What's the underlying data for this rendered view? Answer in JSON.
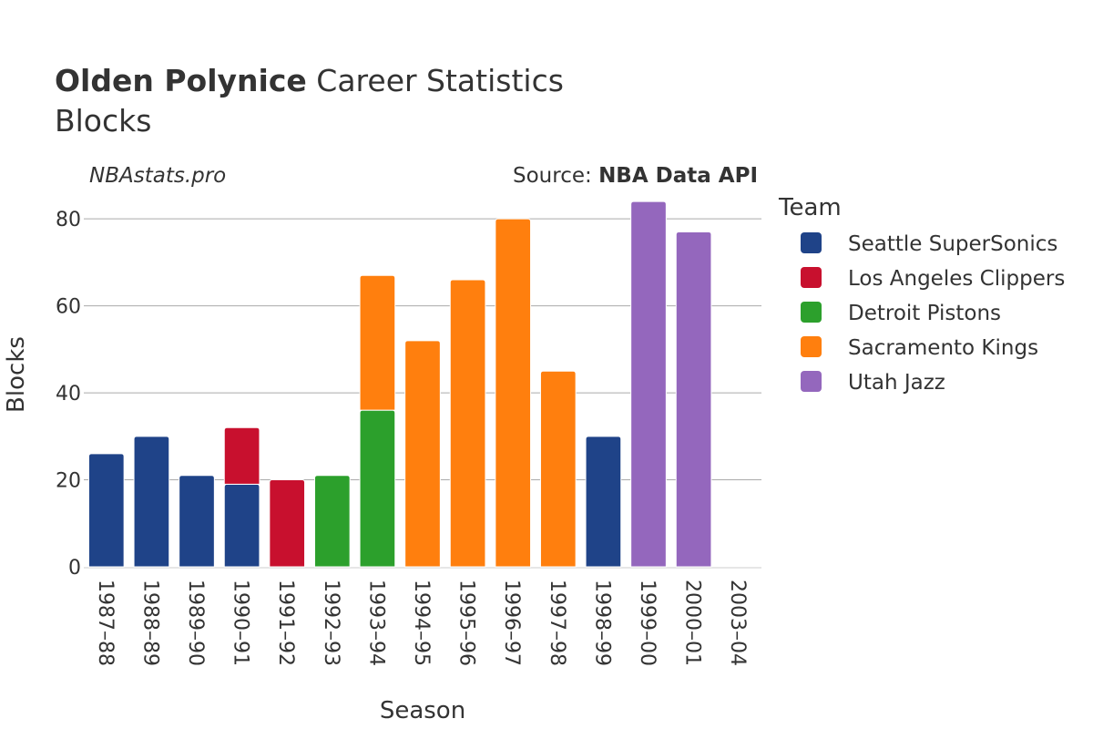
{
  "title": {
    "player": "Olden Polynice",
    "rest": "Career Statistics",
    "subtitle": "Blocks"
  },
  "watermark": "NBAstats.pro",
  "source": {
    "prefix": "Source: ",
    "name": "NBA Data API"
  },
  "chart_data": {
    "type": "bar",
    "stacked": true,
    "xlabel": "Season",
    "ylabel": "Blocks",
    "ylim": [
      0,
      88
    ],
    "yticks": [
      0,
      20,
      40,
      60,
      80
    ],
    "grid": true,
    "legend_title": "Team",
    "legend_position": "right",
    "categories": [
      "1987–88",
      "1988–89",
      "1989–90",
      "1990–91",
      "1991–92",
      "1992–93",
      "1993–94",
      "1994–95",
      "1995–96",
      "1996–97",
      "1997–98",
      "1998–99",
      "1999–00",
      "2000–01",
      "2003–04"
    ],
    "series": [
      {
        "name": "Seattle SuperSonics",
        "color": "#1f4388",
        "values": [
          26,
          30,
          21,
          19,
          0,
          0,
          0,
          0,
          0,
          0,
          0,
          30,
          0,
          0,
          0
        ]
      },
      {
        "name": "Los Angeles Clippers",
        "color": "#c8102e",
        "values": [
          0,
          0,
          0,
          13,
          20,
          0,
          0,
          0,
          0,
          0,
          0,
          0,
          0,
          0,
          0
        ]
      },
      {
        "name": "Detroit Pistons",
        "color": "#2ca02c",
        "values": [
          0,
          0,
          0,
          0,
          0,
          21,
          36,
          0,
          0,
          0,
          0,
          0,
          0,
          0,
          0
        ]
      },
      {
        "name": "Sacramento Kings",
        "color": "#ff7f0e",
        "values": [
          0,
          0,
          0,
          0,
          0,
          0,
          31,
          52,
          66,
          80,
          45,
          0,
          0,
          0,
          0
        ]
      },
      {
        "name": "Utah Jazz",
        "color": "#9467bd",
        "values": [
          0,
          0,
          0,
          0,
          0,
          0,
          0,
          0,
          0,
          0,
          0,
          0,
          84,
          77,
          0
        ]
      }
    ]
  }
}
